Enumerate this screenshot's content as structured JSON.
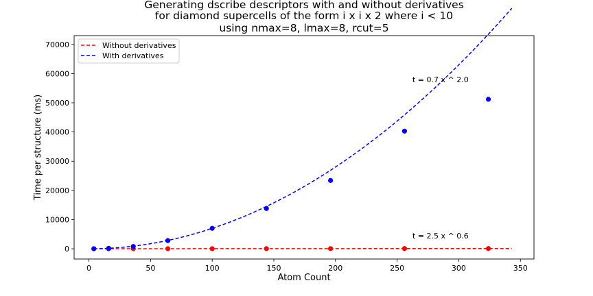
{
  "chart_data": {
    "type": "scatter",
    "title": [
      "Generating dscribe descriptors with and without derivatives",
      "for diamond supercells of the form i x i x 2 where i < 10",
      "using nmax=8, lmax=8, rcut=5"
    ],
    "xlabel": "Atom Count",
    "ylabel": "Time per structure (ms)",
    "xlim": [
      -12,
      361
    ],
    "ylim": [
      -3500,
      73000
    ],
    "xticks": [
      0,
      50,
      100,
      150,
      200,
      250,
      300,
      350
    ],
    "yticks": [
      0,
      10000,
      20000,
      30000,
      40000,
      50000,
      60000,
      70000
    ],
    "grid": false,
    "legend": {
      "placement": "top-left",
      "entries": [
        {
          "label": "Without derivatives",
          "color": "#ff0000",
          "style": "dashed"
        },
        {
          "label": "With derivatives",
          "color": "#0000ff",
          "style": "dashed"
        }
      ]
    },
    "points": {
      "without": {
        "color": "#ff0000",
        "x": [
          4,
          16,
          36,
          64,
          100,
          144,
          196,
          256,
          324
        ],
        "y": [
          5,
          13,
          21,
          30,
          40,
          50,
          60,
          70,
          80
        ]
      },
      "with": {
        "color": "#0000ff",
        "x": [
          4,
          16,
          36,
          64,
          100,
          144,
          196,
          256,
          324
        ],
        "y": [
          20,
          160,
          800,
          2800,
          7000,
          13800,
          23400,
          40300,
          51200
        ]
      }
    },
    "fits": {
      "without": {
        "a": 2.5,
        "b": 0.6,
        "x_range": [
          4,
          343
        ],
        "color": "#ff0000"
      },
      "with": {
        "a": 0.7,
        "b": 2.0,
        "x_range": [
          4,
          343
        ],
        "color": "#0000ff"
      }
    },
    "annotations": [
      {
        "text": "t =  0.7 x ^ 2.0",
        "x": 261,
        "y": 57500
      },
      {
        "text": "t =  2.5 x ^ 0.6",
        "x": 261,
        "y": 4000
      }
    ]
  }
}
